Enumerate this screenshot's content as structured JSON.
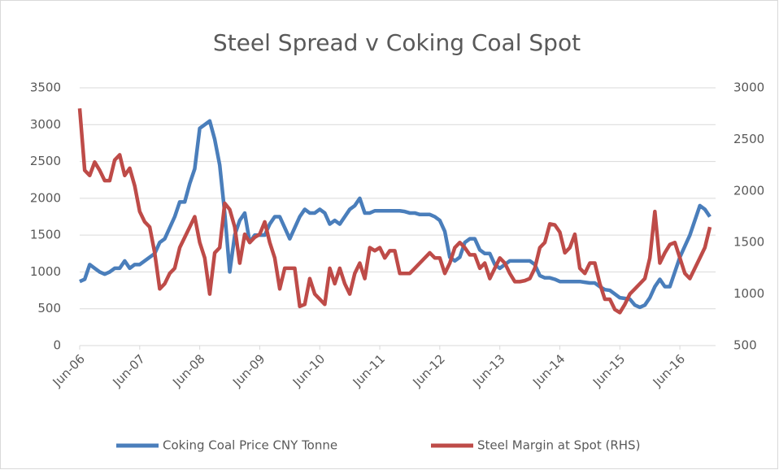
{
  "chart_data": {
    "type": "line",
    "title": "Steel Spread v Coking Coal Spot",
    "categories": [
      "Jun-06",
      null,
      null,
      null,
      null,
      null,
      null,
      null,
      null,
      null,
      null,
      null,
      "Jun-07",
      null,
      null,
      null,
      null,
      null,
      null,
      null,
      null,
      null,
      null,
      null,
      "Jun-08",
      null,
      null,
      null,
      null,
      null,
      null,
      null,
      null,
      null,
      null,
      null,
      "Jun-09",
      null,
      null,
      null,
      null,
      null,
      null,
      null,
      null,
      null,
      null,
      null,
      "Jun-10",
      null,
      null,
      null,
      null,
      null,
      null,
      null,
      null,
      null,
      null,
      null,
      "Jun-11",
      null,
      null,
      null,
      null,
      null,
      null,
      null,
      null,
      null,
      null,
      null,
      "Jun-12",
      null,
      null,
      null,
      null,
      null,
      null,
      null,
      null,
      null,
      null,
      null,
      "Jun-13",
      null,
      null,
      null,
      null,
      null,
      null,
      null,
      null,
      null,
      null,
      null,
      "Jun-14",
      null,
      null,
      null,
      null,
      null,
      null,
      null,
      null,
      null,
      null,
      null,
      "Jun-15",
      null,
      null,
      null,
      null,
      null,
      null,
      null,
      null,
      null,
      null,
      null,
      "Jun-16",
      null,
      null,
      null,
      null,
      null,
      null
    ],
    "series": [
      {
        "name": "Coking Coal Price CNY Tonne",
        "color": "#4a7ebb",
        "axis": "y",
        "values": [
          870,
          900,
          1100,
          1050,
          1000,
          970,
          1000,
          1050,
          1050,
          1150,
          1050,
          1100,
          1100,
          1150,
          1200,
          1250,
          1400,
          1450,
          1600,
          1750,
          1950,
          1950,
          2200,
          2400,
          2950,
          3000,
          3050,
          2800,
          2450,
          1800,
          1000,
          1500,
          1700,
          1800,
          1400,
          1500,
          1500,
          1500,
          1650,
          1750,
          1750,
          1600,
          1450,
          1600,
          1750,
          1850,
          1800,
          1800,
          1850,
          1800,
          1650,
          1700,
          1650,
          1750,
          1850,
          1900,
          2000,
          1800,
          1800,
          1830,
          1830,
          1830,
          1830,
          1830,
          1830,
          1820,
          1800,
          1800,
          1780,
          1780,
          1780,
          1750,
          1700,
          1550,
          1200,
          1150,
          1200,
          1400,
          1450,
          1450,
          1300,
          1250,
          1250,
          1100,
          1050,
          1100,
          1150,
          1150,
          1150,
          1150,
          1150,
          1100,
          950,
          920,
          920,
          900,
          870,
          870,
          870,
          870,
          870,
          860,
          850,
          850,
          800,
          760,
          750,
          700,
          650,
          640,
          630,
          550,
          520,
          550,
          650,
          800,
          900,
          800,
          800,
          1000,
          1200,
          1350,
          1500,
          1700,
          1900,
          1850,
          1750
        ]
      },
      {
        "name": "Steel Margin at Spot (RHS)",
        "color": "#be4b48",
        "axis": "y2",
        "values": [
          2800,
          2200,
          2150,
          2280,
          2200,
          2100,
          2100,
          2300,
          2350,
          2150,
          2220,
          2050,
          1800,
          1700,
          1650,
          1400,
          1050,
          1100,
          1200,
          1250,
          1450,
          1550,
          1650,
          1750,
          1500,
          1350,
          1000,
          1400,
          1450,
          1880,
          1820,
          1650,
          1300,
          1580,
          1500,
          1550,
          1580,
          1700,
          1500,
          1350,
          1050,
          1250,
          1250,
          1250,
          880,
          900,
          1150,
          1000,
          950,
          900,
          1250,
          1100,
          1250,
          1100,
          1000,
          1200,
          1300,
          1150,
          1450,
          1420,
          1450,
          1350,
          1420,
          1420,
          1200,
          1200,
          1200,
          1250,
          1300,
          1350,
          1400,
          1350,
          1350,
          1200,
          1300,
          1450,
          1500,
          1450,
          1380,
          1380,
          1250,
          1300,
          1150,
          1250,
          1350,
          1300,
          1200,
          1120,
          1120,
          1130,
          1150,
          1250,
          1450,
          1500,
          1680,
          1670,
          1600,
          1400,
          1450,
          1580,
          1250,
          1200,
          1300,
          1300,
          1100,
          950,
          950,
          850,
          820,
          900,
          1000,
          1050,
          1100,
          1150,
          1350,
          1800,
          1300,
          1400,
          1480,
          1500,
          1350,
          1200,
          1150,
          1250,
          1350,
          1450,
          1650
        ]
      }
    ],
    "ylim": [
      0,
      3500
    ],
    "yticks": [
      0,
      500,
      1000,
      1500,
      2000,
      2500,
      3000,
      3500
    ],
    "y2lim": [
      500,
      3000
    ],
    "y2ticks": [
      500,
      1000,
      1500,
      2000,
      2500,
      3000
    ],
    "grid": true,
    "legend": "bottom"
  }
}
